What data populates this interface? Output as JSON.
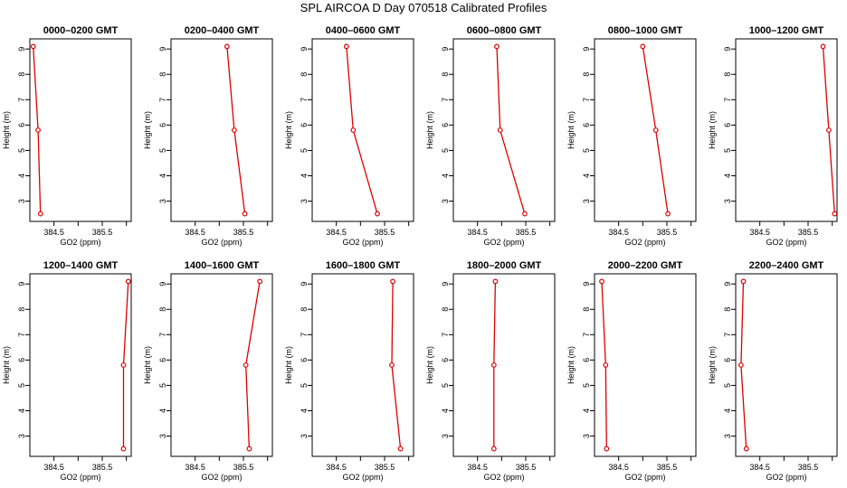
{
  "title": "SPL AIRCOA D  Day 070518  Calibrated Profiles",
  "chart_data": {
    "type": "line",
    "xlabel": "GO2 (ppm)",
    "ylabel": "Height (m)",
    "xlim": [
      384.0,
      386.1
    ],
    "ylim": [
      2.2,
      9.4
    ],
    "xticks": [
      384.5,
      385.0,
      385.5,
      386.0
    ],
    "xtick_labels": [
      "384.5",
      "",
      "385.5",
      ""
    ],
    "yticks": [
      3,
      4,
      5,
      6,
      7,
      8,
      9
    ],
    "ytick_labels": [
      "3",
      "4",
      "5",
      "6",
      "7",
      "8",
      "9"
    ],
    "line_color": "#dd0000",
    "grid": false,
    "heights": [
      9.1,
      5.8,
      2.5
    ],
    "panels": [
      {
        "title": "0000–0200 GMT",
        "x": [
          384.07,
          384.17,
          384.22
        ]
      },
      {
        "title": "0200–0400 GMT",
        "x": [
          385.16,
          385.31,
          385.53
        ]
      },
      {
        "title": "0400–0600 GMT",
        "x": [
          384.71,
          384.85,
          385.35
        ]
      },
      {
        "title": "0600–0800 GMT",
        "x": [
          384.9,
          384.97,
          385.48
        ]
      },
      {
        "title": "0800–1000 GMT",
        "x": [
          385.0,
          385.27,
          385.52
        ]
      },
      {
        "title": "1000–1200 GMT",
        "x": [
          385.81,
          385.93,
          386.05
        ]
      },
      {
        "title": "1200–1400 GMT",
        "x": [
          386.04,
          385.94,
          385.94
        ]
      },
      {
        "title": "1400–1600 GMT",
        "x": [
          385.84,
          385.55,
          385.62
        ]
      },
      {
        "title": "1600–1800 GMT",
        "x": [
          385.67,
          385.65,
          385.83
        ]
      },
      {
        "title": "1800–2000 GMT",
        "x": [
          384.87,
          384.84,
          384.84
        ]
      },
      {
        "title": "2000–2200 GMT",
        "x": [
          384.15,
          384.23,
          384.25
        ]
      },
      {
        "title": "2200–2400 GMT",
        "x": [
          384.16,
          384.11,
          384.22
        ]
      }
    ]
  }
}
